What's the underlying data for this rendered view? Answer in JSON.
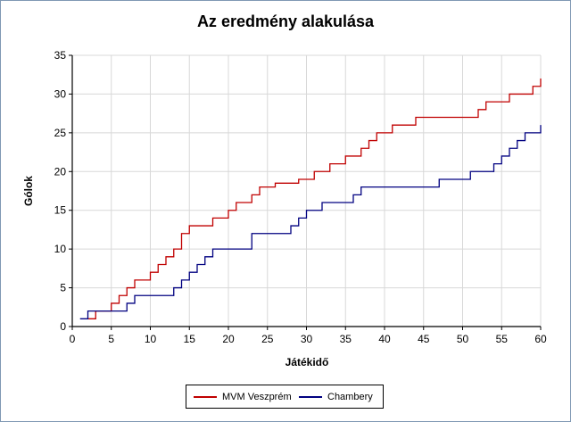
{
  "chart_data": {
    "type": "line",
    "title": "Az eredmény alakulása",
    "xlabel": "Játékidő",
    "ylabel": "Gólok",
    "xlim": [
      0,
      60
    ],
    "ylim": [
      0,
      35
    ],
    "xticks": [
      0,
      5,
      10,
      15,
      20,
      25,
      30,
      35,
      40,
      45,
      50,
      55,
      60
    ],
    "yticks": [
      0,
      5,
      10,
      15,
      20,
      25,
      30,
      35
    ],
    "grid": true,
    "legend_position": "bottom",
    "step": true,
    "series": [
      {
        "name": "MVM Veszprém",
        "color": "#c00000",
        "x": [
          2,
          3,
          5,
          6,
          7,
          8,
          10,
          11,
          12,
          13,
          14,
          15,
          18,
          20,
          21,
          23,
          24,
          26,
          29,
          31,
          33,
          35,
          37,
          38,
          39,
          41,
          44,
          52,
          53,
          56,
          59,
          60
        ],
        "y": [
          1,
          2,
          3,
          4,
          5,
          6,
          7,
          8,
          9,
          10,
          12,
          13,
          14,
          15,
          16,
          17,
          18,
          18.5,
          19,
          20,
          21,
          22,
          23,
          24,
          25,
          26,
          27,
          28,
          29,
          30,
          31,
          32
        ]
      },
      {
        "name": "Chambery",
        "color": "#000080",
        "x": [
          1,
          2,
          3,
          4,
          7,
          8,
          13,
          14,
          15,
          16,
          17,
          18,
          23,
          28,
          29,
          30,
          32,
          36,
          37,
          47,
          51,
          54,
          55,
          56,
          57,
          58,
          60
        ],
        "y": [
          1,
          2,
          2,
          2,
          3,
          4,
          5,
          6,
          7,
          8,
          9,
          10,
          12,
          13,
          14,
          15,
          16,
          17,
          18,
          19,
          20,
          21,
          22,
          23,
          24,
          25,
          26
        ]
      }
    ]
  }
}
